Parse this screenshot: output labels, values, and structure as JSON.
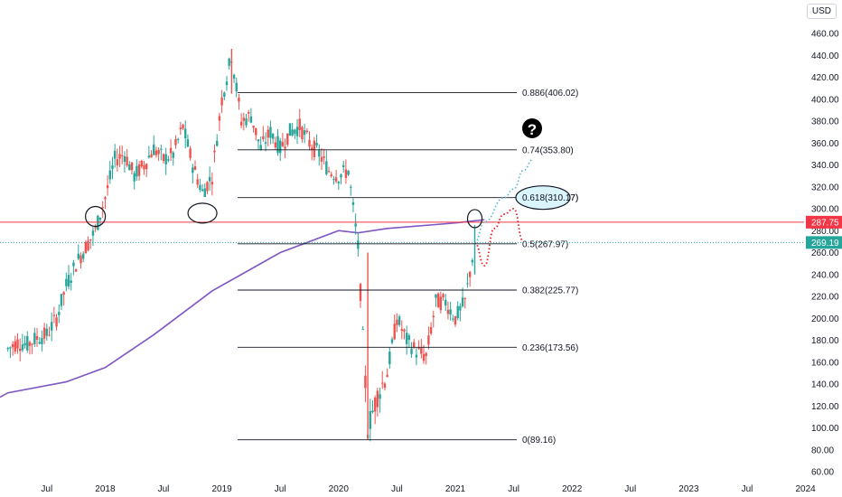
{
  "currency": "USD",
  "chart_data": {
    "type": "candlestick",
    "y_axis": {
      "ticks": [
        60,
        80,
        100,
        120,
        140,
        160,
        180,
        200,
        220,
        240,
        260,
        280,
        300,
        320,
        340,
        360,
        380,
        400,
        420,
        440,
        460
      ],
      "ylim": [
        55,
        470
      ]
    },
    "x_axis": {
      "ticks": [
        {
          "label": "Jul",
          "date": "2017-07"
        },
        {
          "label": "2018",
          "date": "2018-01"
        },
        {
          "label": "Jul",
          "date": "2018-07"
        },
        {
          "label": "2019",
          "date": "2019-01"
        },
        {
          "label": "Jul",
          "date": "2019-07"
        },
        {
          "label": "2020",
          "date": "2020-01"
        },
        {
          "label": "Jul",
          "date": "2020-07"
        },
        {
          "label": "2021",
          "date": "2021-01"
        },
        {
          "label": "Jul",
          "date": "2021-07"
        },
        {
          "label": "2022",
          "date": "2022-01"
        },
        {
          "label": "Jul",
          "date": "2022-07"
        },
        {
          "label": "2023",
          "date": "2023-01"
        },
        {
          "label": "Jul",
          "date": "2023-07"
        },
        {
          "label": "2024",
          "date": "2024-01"
        }
      ]
    },
    "price_path": [
      [
        "2017-03",
        172
      ],
      [
        "2017-04",
        178
      ],
      [
        "2017-05",
        176
      ],
      [
        "2017-06",
        182
      ],
      [
        "2017-07",
        185
      ],
      [
        "2017-08",
        200
      ],
      [
        "2017-09",
        230
      ],
      [
        "2017-10",
        250
      ],
      [
        "2017-11",
        265
      ],
      [
        "2017-12",
        280
      ],
      [
        "2018-01",
        310
      ],
      [
        "2018-02",
        345
      ],
      [
        "2018-03",
        350
      ],
      [
        "2018-04",
        330
      ],
      [
        "2018-05",
        340
      ],
      [
        "2018-06",
        355
      ],
      [
        "2018-07",
        345
      ],
      [
        "2018-08",
        350
      ],
      [
        "2018-09",
        375
      ],
      [
        "2018-10",
        340
      ],
      [
        "2018-11",
        315
      ],
      [
        "2018-12",
        330
      ],
      [
        "2019-01",
        400
      ],
      [
        "2019-02",
        440
      ],
      [
        "2019-03",
        380
      ],
      [
        "2019-04",
        385
      ],
      [
        "2019-05",
        355
      ],
      [
        "2019-06",
        370
      ],
      [
        "2019-07",
        355
      ],
      [
        "2019-08",
        370
      ],
      [
        "2019-09",
        375
      ],
      [
        "2019-10",
        360
      ],
      [
        "2019-11",
        350
      ],
      [
        "2019-12",
        335
      ],
      [
        "2020-01",
        330
      ],
      [
        "2020-02",
        335
      ],
      [
        "2020-03",
        265
      ],
      [
        "2020-04",
        100
      ],
      [
        "2020-05",
        130
      ],
      [
        "2020-06",
        150
      ],
      [
        "2020-07",
        200
      ],
      [
        "2020-08",
        180
      ],
      [
        "2020-09",
        170
      ],
      [
        "2020-10",
        165
      ],
      [
        "2020-11",
        215
      ],
      [
        "2020-12",
        215
      ],
      [
        "2021-01",
        200
      ],
      [
        "2021-02",
        215
      ],
      [
        "2021-03",
        269
      ]
    ],
    "candle_color_up": "#26a69a",
    "candle_color_down": "#ef5350",
    "moving_average": {
      "color": "#7e57c2",
      "values": [
        [
          "2017-03",
          132
        ],
        [
          "2017-09",
          142
        ],
        [
          "2018-01",
          155
        ],
        [
          "2018-06",
          185
        ],
        [
          "2018-12",
          225
        ],
        [
          "2019-03",
          240
        ],
        [
          "2019-07",
          260
        ],
        [
          "2020-01",
          280
        ],
        [
          "2020-03",
          278
        ],
        [
          "2020-06",
          282
        ],
        [
          "2021-01",
          287
        ],
        [
          "2021-04",
          290
        ]
      ]
    },
    "fibonacci": {
      "color": "#131722",
      "levels": [
        {
          "label": "0.886(406.02)",
          "value": 406.02
        },
        {
          "label": "0.74(353.80)",
          "value": 353.8
        },
        {
          "label": "0.618(310.17)",
          "value": 310.17
        },
        {
          "label": "0.5(267.97)",
          "value": 267.97
        },
        {
          "label": "0.382(225.77)",
          "value": 225.77
        },
        {
          "label": "0.236(173.56)",
          "value": 173.56
        },
        {
          "label": "0(89.16)",
          "value": 89.16
        }
      ]
    },
    "horizontal_line": {
      "value": 287.75,
      "label": "287.75",
      "color": "#f23645"
    },
    "last_price": {
      "value": 269.19,
      "label": "269.19",
      "color": "#26a69a"
    },
    "projection_red": [
      [
        "2021-03",
        269
      ],
      [
        "2021-04",
        248
      ],
      [
        "2021-05",
        282
      ],
      [
        "2021-06",
        295
      ],
      [
        "2021-07",
        300
      ],
      [
        "2021-08",
        270
      ]
    ],
    "projection_blue": [
      [
        "2021-03",
        269
      ],
      [
        "2021-04",
        288
      ],
      [
        "2021-06",
        310
      ],
      [
        "2021-07",
        318
      ],
      [
        "2021-08",
        335
      ],
      [
        "2021-09",
        345
      ]
    ],
    "annotation_symbol": "?"
  }
}
